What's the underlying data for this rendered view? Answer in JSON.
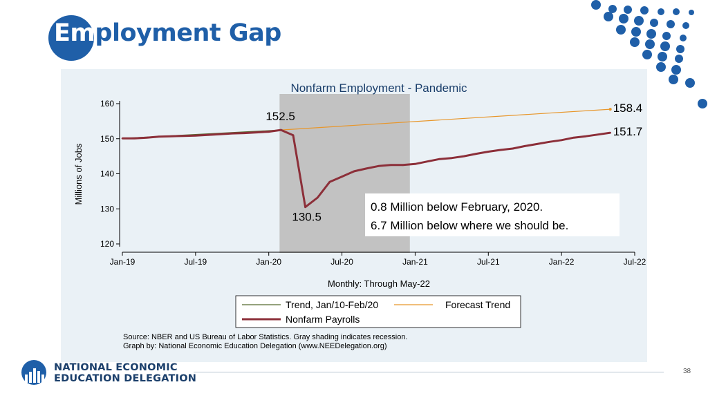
{
  "slide": {
    "title_lead": "Em",
    "title_rest": "ployment Gap",
    "page_number": "38",
    "org_line1": "NATIONAL ECONOMIC",
    "org_line2": "EDUCATION DELEGATION",
    "brand_color": "#1f5fa8"
  },
  "chart_data": {
    "type": "line",
    "title": "Nonfarm Employment - Pandemic",
    "xlabel": "Monthly: Through May-22",
    "ylabel": "Millions of Jobs",
    "ylim": [
      120,
      160
    ],
    "yticks": [
      120,
      130,
      140,
      150,
      160
    ],
    "xlim": [
      "Jan-19",
      "Jul-22"
    ],
    "xticks": [
      "Jan-19",
      "Jul-19",
      "Jan-20",
      "Jul-20",
      "Jan-21",
      "Jul-21",
      "Jan-22",
      "Jul-22"
    ],
    "grid": false,
    "legend_position": "bottom",
    "recession_shading": {
      "start": "Feb-20",
      "end": "Dec-20",
      "color": "#c2c2c2"
    },
    "series": [
      {
        "name": "Trend, Jan/10-Feb/20",
        "color": "#556b2f",
        "x": [
          "Jan-19",
          "Feb-20"
        ],
        "values": [
          150.1,
          152.5
        ]
      },
      {
        "name": "Forecast Trend",
        "color": "#e8962a",
        "x": [
          "Feb-20",
          "May-22"
        ],
        "values": [
          152.5,
          158.4
        ]
      },
      {
        "name": "Nonfarm Payrolls",
        "color": "#8c2f39",
        "x": [
          "Jan-19",
          "Feb-19",
          "Mar-19",
          "Apr-19",
          "May-19",
          "Jun-19",
          "Jul-19",
          "Aug-19",
          "Sep-19",
          "Oct-19",
          "Nov-19",
          "Dec-19",
          "Jan-20",
          "Feb-20",
          "Mar-20",
          "Apr-20",
          "May-20",
          "Jun-20",
          "Jul-20",
          "Aug-20",
          "Sep-20",
          "Oct-20",
          "Nov-20",
          "Dec-20",
          "Jan-21",
          "Feb-21",
          "Mar-21",
          "Apr-21",
          "May-21",
          "Jun-21",
          "Jul-21",
          "Aug-21",
          "Sep-21",
          "Oct-21",
          "Nov-21",
          "Dec-21",
          "Jan-22",
          "Feb-22",
          "Mar-22",
          "Apr-22",
          "May-22"
        ],
        "values": [
          150.1,
          150.1,
          150.3,
          150.6,
          150.7,
          150.8,
          150.9,
          151.1,
          151.3,
          151.5,
          151.6,
          151.8,
          152.0,
          152.5,
          151.0,
          130.5,
          133.2,
          137.7,
          139.2,
          140.7,
          141.5,
          142.2,
          142.5,
          142.5,
          142.8,
          143.5,
          144.2,
          144.5,
          145.0,
          145.7,
          146.3,
          146.8,
          147.2,
          147.9,
          148.5,
          149.1,
          149.6,
          150.3,
          150.7,
          151.2,
          151.7
        ]
      }
    ],
    "data_labels": [
      {
        "text": "152.5",
        "x": "Feb-20",
        "y": 152.5
      },
      {
        "text": "130.5",
        "x": "Apr-20",
        "y": 130.5
      },
      {
        "text": "158.4",
        "x": "May-22",
        "y": 158.4
      },
      {
        "text": "151.7",
        "x": "May-22",
        "y": 151.7
      }
    ],
    "annotation": {
      "line1": "0.8 Million below February, 2020.",
      "line2": "6.7 Million below where we should be."
    },
    "source_line1": "Source: NBER and US Bureau of Labor Statistics. Gray shading indicates recession.",
    "source_line2": "Graph by: National Economic Education Delegation (www.NEEDelegation.org)"
  }
}
